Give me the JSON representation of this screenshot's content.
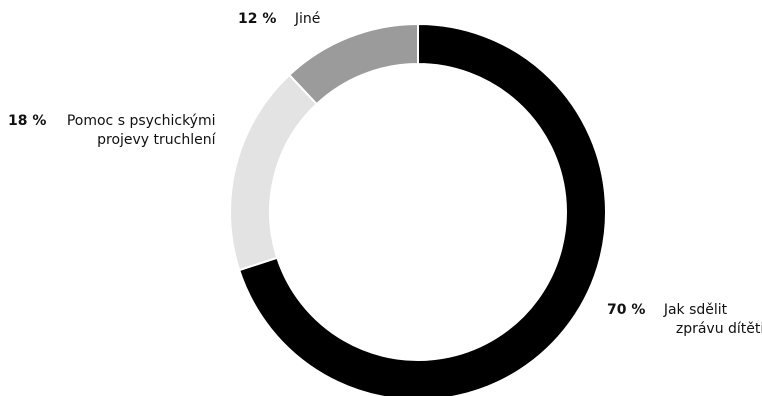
{
  "chart_data": {
    "type": "pie",
    "style": "donut",
    "slices": [
      {
        "label": "Jak sdělit zprávu dítěti",
        "label_lines": [
          "Jak sdělit",
          "zprávu dítěti"
        ],
        "percent_label": "70 %",
        "value": 70,
        "color": "#000000"
      },
      {
        "label": "Pomoc s psychickými projevy truchlení",
        "label_lines": [
          "Pomoc s psychickými",
          "projevy truchlení"
        ],
        "percent_label": "18 %",
        "value": 18,
        "color": "#e3e3e3"
      },
      {
        "label": "Jiné",
        "label_lines": [
          "Jiné"
        ],
        "percent_label": "12 %",
        "value": 12,
        "color": "#9b9b9b"
      }
    ],
    "start": "top",
    "direction": "clockwise",
    "legend": "none"
  }
}
